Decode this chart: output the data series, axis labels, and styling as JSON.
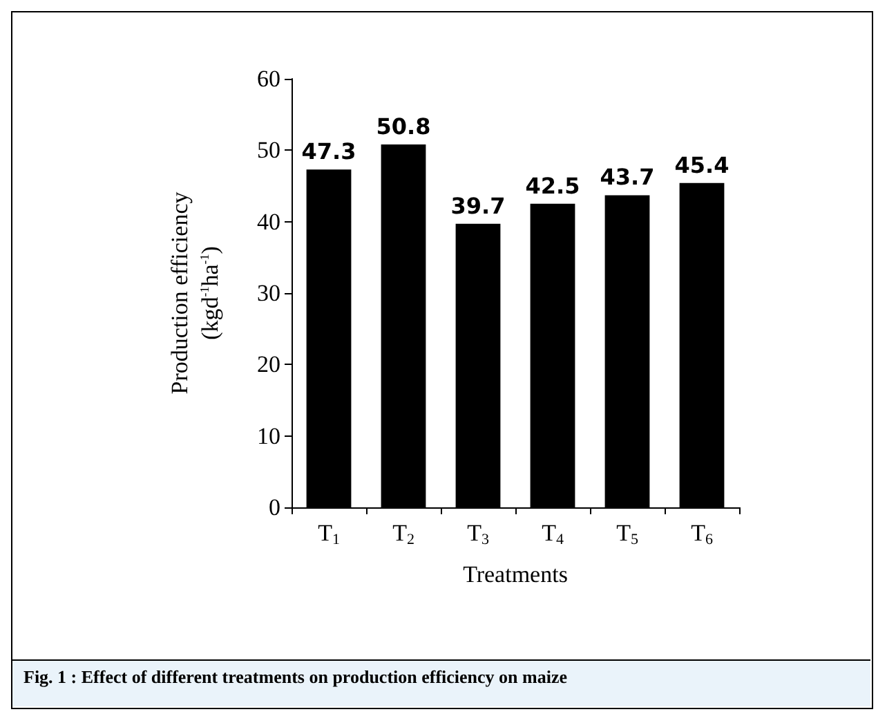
{
  "chart_data": {
    "type": "bar",
    "xlabel": "Treatments",
    "ylabel": "Production efficiency\n(kgd$^{-1}$ha$^{-1}$)",
    "categories": [
      "T$_{1}$",
      "T$_{2}$",
      "T$_{3}$",
      "T$_{4}$",
      "T$_{5}$",
      "T$_{6}$"
    ],
    "values": [
      47.3,
      50.8,
      39.7,
      42.5,
      43.7,
      45.4
    ],
    "color": "#000000",
    "ylim": [
      0,
      60
    ],
    "yticks": [
      0,
      10,
      20,
      30,
      40,
      50,
      60
    ],
    "grid": false,
    "data_labels": true,
    "annotations": [
      "Fig. 1 :  Effect of different treatments on production efficiency on maize"
    ]
  }
}
